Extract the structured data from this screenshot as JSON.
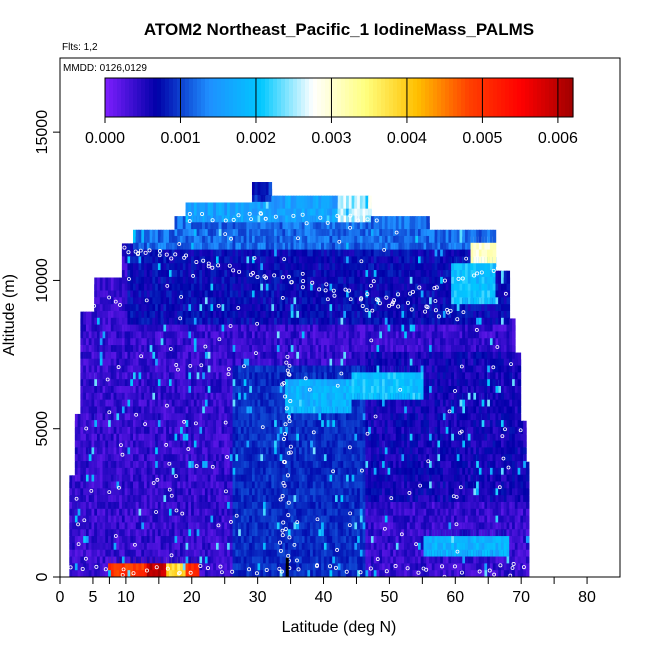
{
  "chart_data": {
    "type": "heatmap",
    "title": "ATOM2 Northeast_Pacific_1 IodineMass_PALMS",
    "flights_label": "Flts: 1,2",
    "dates_label": "MMDD: 0126,0129",
    "xlabel": "Latitude (deg N)",
    "ylabel": "Altitude (m)",
    "xlim": [
      0,
      85
    ],
    "ylim": [
      0,
      17500
    ],
    "x_ticks": [
      0,
      5,
      10,
      20,
      30,
      40,
      50,
      60,
      70,
      80
    ],
    "x_minor_ticks": [
      7.5,
      15,
      25,
      35,
      45,
      55,
      65,
      75
    ],
    "y_ticks": [
      0,
      5000,
      10000,
      15000
    ],
    "grid": false,
    "colorbar": {
      "placement": "top",
      "min": 0,
      "max": 0.0062,
      "ticks": [
        "0.000",
        "0.001",
        "0.002",
        "0.003",
        "0.004",
        "0.005",
        "0.006"
      ],
      "tick_values": [
        0,
        0.001,
        0.002,
        0.003,
        0.004,
        0.005,
        0.006
      ],
      "colors": [
        "#7f1fff",
        "#0000a8",
        "#1f8fff",
        "#00c8ff",
        "#ffffff",
        "#ffff80",
        "#ffc000",
        "#ff4000",
        "#ff0000",
        "#a00000"
      ]
    },
    "curtain": {
      "lat_range": [
        1,
        71
      ],
      "alt_range": [
        0,
        13000
      ],
      "dominant_value": 0.0004,
      "bands": [
        {
          "x": [
            29,
            32
          ],
          "y": [
            12500,
            13000
          ],
          "value": 0.0009
        },
        {
          "x": [
            32,
            46
          ],
          "y": [
            12500,
            13000
          ],
          "value": 0.0022
        },
        {
          "x": [
            17,
            42
          ],
          "y": [
            11800,
            12500
          ],
          "value": 0.0016
        },
        {
          "x": [
            42,
            58
          ],
          "y": [
            11800,
            12500
          ],
          "value": 0.0026
        },
        {
          "x": [
            11,
            67
          ],
          "y": [
            11000,
            11800
          ],
          "value": 0.0012
        },
        {
          "x": [
            62,
            68
          ],
          "y": [
            10500,
            11200
          ],
          "value": 0.003
        },
        {
          "x": [
            59,
            66
          ],
          "y": [
            9000,
            10500
          ],
          "value": 0.002
        },
        {
          "x": [
            34,
            44
          ],
          "y": [
            5500,
            6500
          ],
          "value": 0.0018
        },
        {
          "x": [
            44,
            55
          ],
          "y": [
            5800,
            6800
          ],
          "value": 0.002
        },
        {
          "x": [
            55,
            68
          ],
          "y": [
            500,
            1200
          ],
          "value": 0.0018
        },
        {
          "x": [
            7,
            21
          ],
          "y": [
            0,
            450
          ],
          "value": 0.005
        },
        {
          "x": [
            13,
            16
          ],
          "y": [
            0,
            450
          ],
          "value": 0.006
        },
        {
          "x": [
            16,
            19
          ],
          "y": [
            0,
            450
          ],
          "value": 0.0038
        }
      ]
    }
  }
}
